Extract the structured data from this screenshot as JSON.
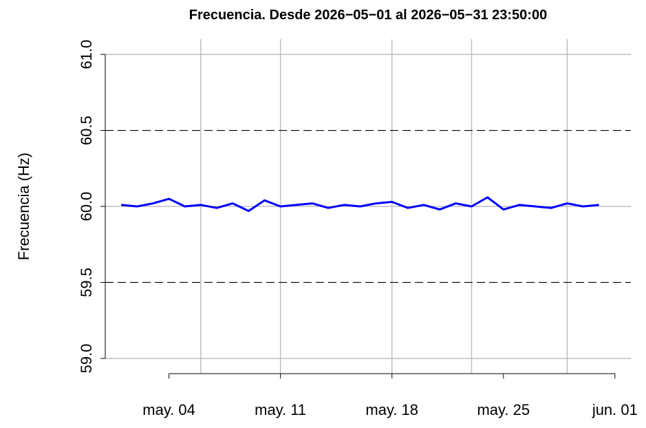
{
  "chart_data": {
    "type": "line",
    "title": "Frecuencia. Desde  2026−05−01  al  2026−05−31 23:50:00",
    "y_label": "Frecuencia (Hz)",
    "x": [
      "2026-05-01",
      "2026-05-02",
      "2026-05-03",
      "2026-05-04",
      "2026-05-05",
      "2026-05-06",
      "2026-05-07",
      "2026-05-08",
      "2026-05-09",
      "2026-05-10",
      "2026-05-11",
      "2026-05-12",
      "2026-05-13",
      "2026-05-14",
      "2026-05-15",
      "2026-05-16",
      "2026-05-17",
      "2026-05-18",
      "2026-05-19",
      "2026-05-20",
      "2026-05-21",
      "2026-05-22",
      "2026-05-23",
      "2026-05-24",
      "2026-05-25",
      "2026-05-26",
      "2026-05-27",
      "2026-05-28",
      "2026-05-29",
      "2026-05-30",
      "2026-05-31"
    ],
    "series": [
      {
        "color": "#0000ff",
        "values": [
          60.01,
          60.0,
          60.02,
          60.05,
          60.0,
          60.01,
          59.99,
          60.02,
          59.97,
          60.04,
          60.0,
          60.01,
          60.02,
          59.99,
          60.01,
          60.0,
          60.02,
          60.03,
          59.99,
          60.01,
          59.98,
          60.02,
          60.0,
          60.06,
          59.98,
          60.01,
          60.0,
          59.99,
          60.02,
          60.0,
          60.01
        ]
      }
    ],
    "xlim": [
      "2026-04-30",
      "2026-06-02"
    ],
    "xticks": [
      {
        "value": "2026-05-04",
        "label": "may. 04"
      },
      {
        "value": "2026-05-11",
        "label": "may. 11"
      },
      {
        "value": "2026-05-18",
        "label": "may. 18"
      },
      {
        "value": "2026-05-25",
        "label": "may. 25"
      },
      {
        "value": "2026-06-01",
        "label": "jun. 01"
      }
    ],
    "ylim": [
      58.9,
      61.1
    ],
    "yticks": [
      {
        "value": 59,
        "label": "59.0"
      },
      {
        "value": 59.5,
        "label": "59.5"
      },
      {
        "value": 60,
        "label": "60.0"
      },
      {
        "value": 60.5,
        "label": "60.5"
      },
      {
        "value": 61,
        "label": "61.0"
      }
    ],
    "grid": true,
    "grid_y": [
      59,
      60,
      61
    ],
    "grid_x": [
      "2026-05-06",
      "2026-05-11",
      "2026-05-18",
      "2026-05-23",
      "2026-05-29"
    ],
    "dashed_lines": [
      59.5,
      60.5
    ]
  }
}
